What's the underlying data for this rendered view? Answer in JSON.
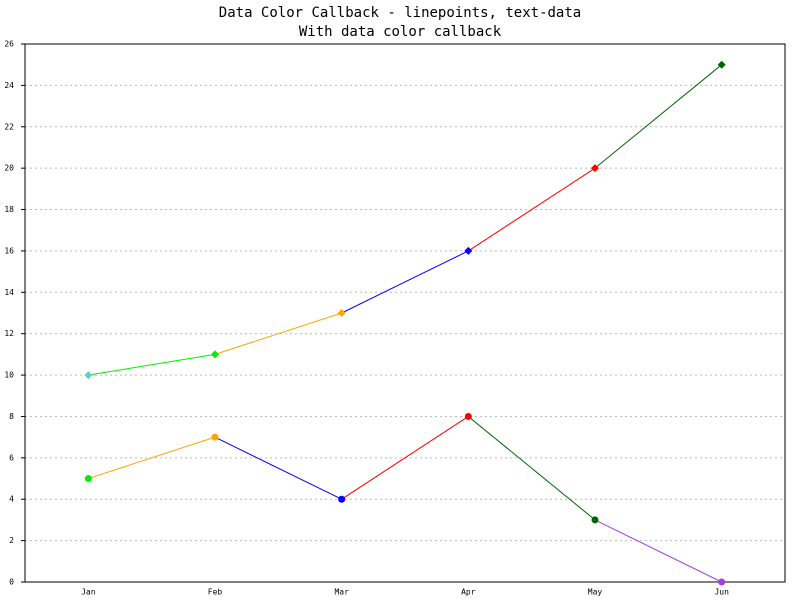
{
  "chart_data": {
    "type": "linepoints",
    "title": "Data Color Callback - linepoints, text-data",
    "subtitle": "With data color callback",
    "categories": [
      "Jan",
      "Feb",
      "Mar",
      "Apr",
      "May",
      "Jun"
    ],
    "series": [
      {
        "marker": "diamond",
        "colors": [
          "#66cccc",
          "#00ee00",
          "#ffa500",
          "#0000ff",
          "#ff0000",
          "#006400"
        ],
        "values": [
          10,
          11,
          13,
          16,
          20,
          25
        ]
      },
      {
        "marker": "circle",
        "colors": [
          "#00ee00",
          "#ffa500",
          "#0000ff",
          "#ff0000",
          "#006400",
          "#a040e0"
        ],
        "values": [
          5,
          7,
          4,
          8,
          3,
          0
        ]
      }
    ],
    "ylim": [
      0,
      26
    ],
    "yticks": [
      0,
      2,
      4,
      6,
      8,
      10,
      12,
      14,
      16,
      18,
      20,
      22,
      24,
      26
    ],
    "grid": true
  }
}
